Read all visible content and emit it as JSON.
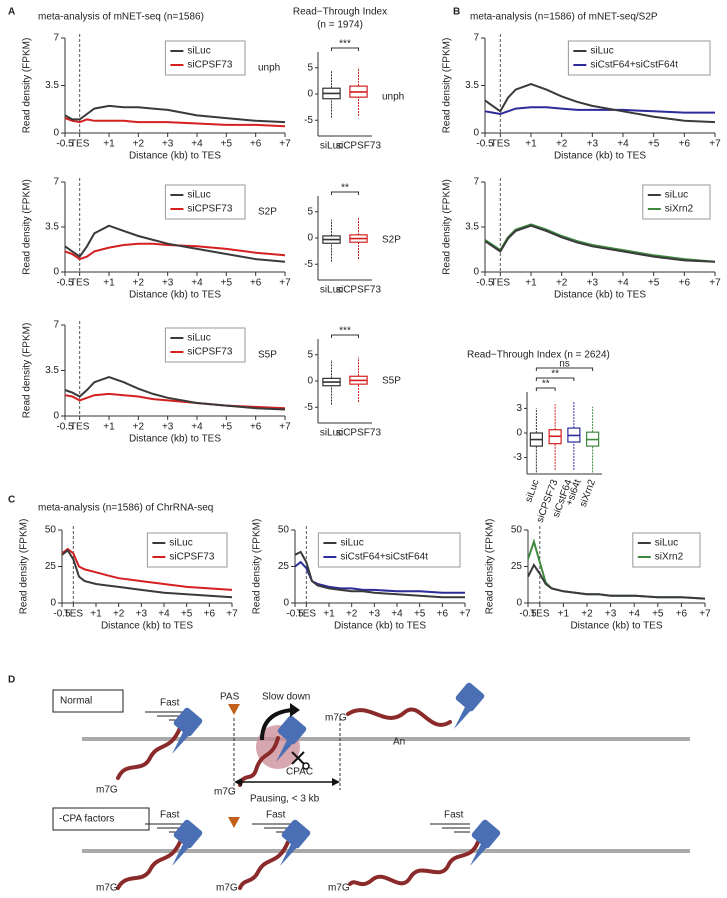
{
  "panel_labels": [
    "A",
    "B",
    "C",
    "D"
  ],
  "chart_data": [
    {
      "type": "line",
      "title": "meta-analysis of mNET-seq (n=1586)",
      "annotation": "unph",
      "xlabel": "Distance (kb) to TES",
      "ylabel": "Read density (FPKM)",
      "x": [
        -0.5,
        -0.25,
        0,
        0.25,
        0.5,
        1,
        1.5,
        2,
        2.5,
        3,
        4,
        5,
        6,
        7
      ],
      "xlim": [
        -0.5,
        7
      ],
      "xticks": [
        -0.5,
        {
          "value": 0,
          "label": "TES"
        },
        {
          "value": 1,
          "label": "+1"
        },
        {
          "value": 2,
          "label": "+2"
        },
        {
          "value": 3,
          "label": "+3"
        },
        {
          "value": 4,
          "label": "+4"
        },
        {
          "value": 5,
          "label": "+5"
        },
        {
          "value": 6,
          "label": "+6"
        },
        {
          "value": 7,
          "label": "+7"
        }
      ],
      "vline": 0,
      "ylim": [
        0,
        7
      ],
      "yticks": [
        0,
        3.5,
        7
      ],
      "legend": "upper right",
      "series": [
        {
          "name": "siLuc",
          "color": "#3a3a3a",
          "values": [
            1.3,
            1.0,
            1.0,
            1.4,
            1.8,
            2.0,
            1.9,
            1.9,
            1.8,
            1.7,
            1.3,
            1.1,
            0.9,
            0.8
          ]
        },
        {
          "name": "siCPSF73",
          "color": "#d42020",
          "values": [
            1.1,
            0.9,
            0.8,
            1.0,
            0.9,
            0.9,
            0.9,
            0.8,
            0.8,
            0.8,
            0.7,
            0.6,
            0.6,
            0.5
          ]
        }
      ]
    },
    {
      "type": "box",
      "title": [
        "Read−Through Index",
        "(n = 1974)"
      ],
      "annotation": "unph",
      "categories": [
        "siLuc",
        "siCPSF73"
      ],
      "category_colors": [
        "#333333",
        "#d42020"
      ],
      "boxes": [
        {
          "whislo": -4.5,
          "q1": -0.9,
          "med": 0.1,
          "q3": 1.1,
          "whishi": 4.5
        },
        {
          "whislo": -4.2,
          "q1": -0.6,
          "med": 0.4,
          "q3": 1.5,
          "whishi": 5
        }
      ],
      "ylim": [
        -8,
        8
      ],
      "yticks": [
        -5,
        0,
        5
      ],
      "comparisons": [
        {
          "pair": [
            "siLuc",
            "siCPSF73"
          ],
          "label": "***"
        }
      ]
    },
    {
      "type": "line",
      "annotation": "S2P",
      "xlabel": "Distance (kb) to TES",
      "ylabel": "Read density (FPKM)",
      "x": [
        -0.5,
        -0.25,
        0,
        0.25,
        0.5,
        1,
        1.5,
        2,
        2.5,
        3,
        4,
        5,
        6,
        7
      ],
      "xlim": [
        -0.5,
        7
      ],
      "xticks": [
        -0.5,
        {
          "value": 0,
          "label": "TES"
        },
        {
          "value": 1,
          "label": "+1"
        },
        {
          "value": 2,
          "label": "+2"
        },
        {
          "value": 3,
          "label": "+3"
        },
        {
          "value": 4,
          "label": "+4"
        },
        {
          "value": 5,
          "label": "+5"
        },
        {
          "value": 6,
          "label": "+6"
        },
        {
          "value": 7,
          "label": "+7"
        }
      ],
      "vline": 0,
      "ylim": [
        0,
        7
      ],
      "yticks": [
        0,
        3.5,
        7
      ],
      "legend": "upper right",
      "series": [
        {
          "name": "siLuc",
          "color": "#3a3a3a",
          "values": [
            2.0,
            1.6,
            1.2,
            2.0,
            3.0,
            3.6,
            3.2,
            2.8,
            2.5,
            2.2,
            1.8,
            1.4,
            1.0,
            0.8
          ]
        },
        {
          "name": "siCPSF73",
          "color": "#d42020",
          "values": [
            1.6,
            1.4,
            1.0,
            1.2,
            1.6,
            1.9,
            2.1,
            2.2,
            2.2,
            2.1,
            2.0,
            1.8,
            1.5,
            1.3
          ]
        }
      ]
    },
    {
      "type": "box",
      "annotation": "S2P",
      "categories": [
        "siLuc",
        "siCPSF73"
      ],
      "category_colors": [
        "#333333",
        "#d42020"
      ],
      "boxes": [
        {
          "whislo": -4.5,
          "q1": -1.0,
          "med": -0.3,
          "q3": 0.4,
          "whishi": 3.5
        },
        {
          "whislo": -4,
          "q1": -0.8,
          "med": -0.1,
          "q3": 0.6,
          "whishi": 4
        }
      ],
      "ylim": [
        -8,
        8
      ],
      "yticks": [
        -5,
        0,
        5
      ],
      "comparisons": [
        {
          "pair": [
            "siLuc",
            "siCPSF73"
          ],
          "label": "**"
        }
      ]
    },
    {
      "type": "line",
      "annotation": "S5P",
      "xlabel": "Distance (kb) to TES",
      "ylabel": "Read density (FPKM)",
      "x": [
        -0.5,
        -0.25,
        0,
        0.25,
        0.5,
        1,
        1.5,
        2,
        2.5,
        3,
        4,
        5,
        6,
        7
      ],
      "xlim": [
        -0.5,
        7
      ],
      "xticks": [
        -0.5,
        {
          "value": 0,
          "label": "TES"
        },
        {
          "value": 1,
          "label": "+1"
        },
        {
          "value": 2,
          "label": "+2"
        },
        {
          "value": 3,
          "label": "+3"
        },
        {
          "value": 4,
          "label": "+4"
        },
        {
          "value": 5,
          "label": "+5"
        },
        {
          "value": 6,
          "label": "+6"
        },
        {
          "value": 7,
          "label": "+7"
        }
      ],
      "vline": 0,
      "ylim": [
        0,
        7
      ],
      "yticks": [
        0,
        3.5,
        7
      ],
      "legend": "upper right",
      "series": [
        {
          "name": "siLuc",
          "color": "#3a3a3a",
          "values": [
            2.0,
            1.8,
            1.5,
            2.0,
            2.6,
            3.0,
            2.6,
            2.1,
            1.7,
            1.4,
            1.0,
            0.8,
            0.6,
            0.5
          ]
        },
        {
          "name": "siCPSF73",
          "color": "#d42020",
          "values": [
            1.6,
            1.5,
            1.2,
            1.4,
            1.6,
            1.7,
            1.6,
            1.5,
            1.3,
            1.2,
            1.0,
            0.8,
            0.7,
            0.6
          ]
        }
      ]
    },
    {
      "type": "box",
      "annotation": "S5P",
      "categories": [
        "siLuc",
        "siCPSF73"
      ],
      "category_colors": [
        "#333333",
        "#d42020"
      ],
      "boxes": [
        {
          "whislo": -4.5,
          "q1": -0.9,
          "med": -0.2,
          "q3": 0.5,
          "whishi": 4
        },
        {
          "whislo": -4,
          "q1": -0.6,
          "med": 0.1,
          "q3": 0.9,
          "whishi": 4.5
        }
      ],
      "ylim": [
        -8,
        8
      ],
      "yticks": [
        -5,
        0,
        5
      ],
      "comparisons": [
        {
          "pair": [
            "siLuc",
            "siCPSF73"
          ],
          "label": "***"
        }
      ]
    },
    {
      "type": "line",
      "title": "meta-analysis (n=1586) of mNET-seq/S2P",
      "xlabel": "Distance (kb) to TES",
      "ylabel": "Read density (FPKM)",
      "x": [
        -0.5,
        -0.25,
        0,
        0.25,
        0.5,
        1,
        1.5,
        2,
        2.5,
        3,
        4,
        5,
        6,
        7
      ],
      "xlim": [
        -0.5,
        7
      ],
      "xticks": [
        -0.5,
        {
          "value": 0,
          "label": "TES"
        },
        {
          "value": 1,
          "label": "+1"
        },
        {
          "value": 2,
          "label": "+2"
        },
        {
          "value": 3,
          "label": "+3"
        },
        {
          "value": 4,
          "label": "+4"
        },
        {
          "value": 5,
          "label": "+5"
        },
        {
          "value": 6,
          "label": "+6"
        },
        {
          "value": 7,
          "label": "+7"
        }
      ],
      "vline": 0,
      "ylim": [
        0,
        7
      ],
      "yticks": [
        0,
        3.5,
        7
      ],
      "legend": "upper right",
      "series": [
        {
          "name": "siLuc",
          "color": "#3a3a3a",
          "values": [
            2.4,
            2.0,
            1.6,
            2.6,
            3.2,
            3.6,
            3.2,
            2.7,
            2.3,
            2.0,
            1.6,
            1.2,
            0.9,
            0.8
          ]
        },
        {
          "name": "siCstF64+siCstF64t",
          "color": "#2b2b9a",
          "values": [
            1.6,
            1.5,
            1.4,
            1.6,
            1.8,
            1.9,
            1.9,
            1.8,
            1.7,
            1.7,
            1.7,
            1.6,
            1.5,
            1.5
          ]
        }
      ]
    },
    {
      "type": "line",
      "xlabel": "Distance (kb) to TES",
      "ylabel": "Read density (FPKM)",
      "x": [
        -0.5,
        -0.25,
        0,
        0.25,
        0.5,
        1,
        1.5,
        2,
        2.5,
        3,
        4,
        5,
        6,
        7
      ],
      "xlim": [
        -0.5,
        7
      ],
      "xticks": [
        -0.5,
        {
          "value": 0,
          "label": "TES"
        },
        {
          "value": 1,
          "label": "+1"
        },
        {
          "value": 2,
          "label": "+2"
        },
        {
          "value": 3,
          "label": "+3"
        },
        {
          "value": 4,
          "label": "+4"
        },
        {
          "value": 5,
          "label": "+5"
        },
        {
          "value": 6,
          "label": "+6"
        },
        {
          "value": 7,
          "label": "+7"
        }
      ],
      "vline": 0,
      "ylim": [
        0,
        7
      ],
      "yticks": [
        0,
        3.5,
        7
      ],
      "legend": "upper right",
      "series": [
        {
          "name": "siLuc",
          "color": "#3a3a3a",
          "values": [
            2.4,
            2.0,
            1.6,
            2.6,
            3.2,
            3.6,
            3.2,
            2.7,
            2.3,
            2.0,
            1.6,
            1.2,
            0.9,
            0.8
          ]
        },
        {
          "name": "siXrn2",
          "color": "#3f8a3f",
          "values": [
            2.5,
            2.1,
            1.7,
            2.7,
            3.3,
            3.7,
            3.3,
            2.8,
            2.4,
            2.1,
            1.7,
            1.3,
            1.0,
            0.8
          ]
        }
      ]
    },
    {
      "type": "box",
      "title": "Read−Through Index (n = 2624)",
      "categories": [
        "siLuc",
        "siCPSF73",
        [
          "siCstF64",
          "+si64t"
        ],
        "siXrn2"
      ],
      "category_colors": [
        "#333333",
        "#d42020",
        "#2b2b9a",
        "#3f8a3f"
      ],
      "boxes": [
        {
          "whislo": -4.8,
          "q1": -1.6,
          "med": -0.8,
          "q3": 0,
          "whishi": 3
        },
        {
          "whislo": -4.5,
          "q1": -1.3,
          "med": -0.4,
          "q3": 0.4,
          "whishi": 3.5
        },
        {
          "whislo": -4.5,
          "q1": -1.1,
          "med": -0.3,
          "q3": 0.6,
          "whishi": 3.8
        },
        {
          "whislo": -4.8,
          "q1": -1.6,
          "med": -0.8,
          "q3": 0.1,
          "whishi": 3.2
        }
      ],
      "ylim": [
        -5,
        5
      ],
      "yticks": [
        3,
        0,
        -3
      ],
      "comparisons": [
        {
          "pair": [
            "siLuc",
            "siCPSF73"
          ],
          "label": "**"
        },
        {
          "pair": [
            "siLuc",
            [
              "siCstF64",
              "+si64t"
            ]
          ],
          "label": "**"
        },
        {
          "pair": [
            "siLuc",
            "siXrn2"
          ],
          "label": "ns"
        }
      ]
    },
    {
      "type": "line",
      "title": "meta-analysis (n=1586) of ChrRNA-seq",
      "xlabel": "Distance (kb) to TES",
      "ylabel": "Read density (FPKM)",
      "x": [
        -0.5,
        -0.25,
        0,
        0.25,
        0.5,
        1,
        1.5,
        2,
        2.5,
        3,
        4,
        5,
        6,
        7
      ],
      "xlim": [
        -0.5,
        7
      ],
      "xticks": [
        -0.5,
        {
          "value": 0,
          "label": "TES"
        },
        {
          "value": 1,
          "label": "+1"
        },
        {
          "value": 2,
          "label": "+2"
        },
        {
          "value": 3,
          "label": "+3"
        },
        {
          "value": 4,
          "label": "+4"
        },
        {
          "value": 5,
          "label": "+5"
        },
        {
          "value": 6,
          "label": "+6"
        },
        {
          "value": 7,
          "label": "+7"
        }
      ],
      "vline": 0,
      "ylim": [
        0,
        50
      ],
      "yticks": [
        0,
        25,
        50
      ],
      "legend": "upper right",
      "series": [
        {
          "name": "siLuc",
          "color": "#3a3a3a",
          "values": [
            33,
            36,
            30,
            18,
            15,
            13,
            12,
            11,
            10,
            9,
            7,
            6,
            5,
            4
          ]
        },
        {
          "name": "siCPSF73",
          "color": "#d42020",
          "values": [
            34,
            37,
            34,
            25,
            23,
            21,
            19,
            17,
            16,
            15,
            13,
            11,
            10,
            9
          ]
        }
      ]
    },
    {
      "type": "line",
      "xlabel": "Distance (kb) to TES",
      "ylabel": "Read density (FPKM)",
      "x": [
        -0.5,
        -0.25,
        0,
        0.25,
        0.5,
        1,
        1.5,
        2,
        2.5,
        3,
        4,
        5,
        6,
        7
      ],
      "xlim": [
        -0.5,
        7
      ],
      "xticks": [
        -0.5,
        {
          "value": 0,
          "label": "TES"
        },
        {
          "value": 1,
          "label": "+1"
        },
        {
          "value": 2,
          "label": "+2"
        },
        {
          "value": 3,
          "label": "+3"
        },
        {
          "value": 4,
          "label": "+4"
        },
        {
          "value": 5,
          "label": "+5"
        },
        {
          "value": 6,
          "label": "+6"
        },
        {
          "value": 7,
          "label": "+7"
        }
      ],
      "vline": 0,
      "ylim": [
        0,
        50
      ],
      "yticks": [
        0,
        25,
        50
      ],
      "legend": "upper right",
      "series": [
        {
          "name": "siLuc",
          "color": "#3a3a3a",
          "values": [
            33,
            35,
            28,
            15,
            12,
            10,
            9,
            8,
            8,
            7,
            6,
            5,
            4,
            4
          ]
        },
        {
          "name": "siCstF64+siCstF64t",
          "color": "#2b2b9a",
          "values": [
            25,
            28,
            24,
            15,
            13,
            11,
            10,
            10,
            9,
            9,
            8,
            8,
            7,
            7
          ]
        }
      ]
    },
    {
      "type": "line",
      "xlabel": "Distance (kb) to TES",
      "ylabel": "Read density (FPKM)",
      "x": [
        -0.5,
        -0.25,
        0,
        0.25,
        0.5,
        1,
        1.5,
        2,
        2.5,
        3,
        4,
        5,
        6,
        7
      ],
      "xlim": [
        -0.5,
        7
      ],
      "xticks": [
        -0.5,
        {
          "value": 0,
          "label": "TES"
        },
        {
          "value": 1,
          "label": "+1"
        },
        {
          "value": 2,
          "label": "+2"
        },
        {
          "value": 3,
          "label": "+3"
        },
        {
          "value": 4,
          "label": "+4"
        },
        {
          "value": 5,
          "label": "+5"
        },
        {
          "value": 6,
          "label": "+6"
        },
        {
          "value": 7,
          "label": "+7"
        }
      ],
      "vline": 0,
      "ylim": [
        0,
        50
      ],
      "yticks": [
        0,
        25,
        50
      ],
      "legend": "upper right",
      "series": [
        {
          "name": "siLuc",
          "color": "#3a3a3a",
          "values": [
            18,
            26,
            20,
            13,
            10,
            8,
            7,
            6,
            6,
            5,
            5,
            4,
            4,
            3
          ]
        },
        {
          "name": "siXrn2",
          "color": "#3f8a3f",
          "values": [
            30,
            42,
            28,
            14,
            10,
            8,
            7,
            6,
            6,
            5,
            5,
            4,
            4,
            3
          ]
        }
      ]
    }
  ],
  "diagram": {
    "normal": {
      "label": "Normal",
      "fast": "Fast",
      "pas": "PAS",
      "slow": "Slow down",
      "m7g": [
        "m7G",
        "m7G",
        "m7G"
      ],
      "an": "An",
      "cpac": "CPAC",
      "pausing": "Pausing, < 3 kb"
    },
    "cpa": {
      "label": "-CPA factors",
      "fast": [
        "Fast",
        "Fast",
        "Fast"
      ],
      "m7g": [
        "m7G",
        "m7G",
        "m7G"
      ]
    }
  }
}
